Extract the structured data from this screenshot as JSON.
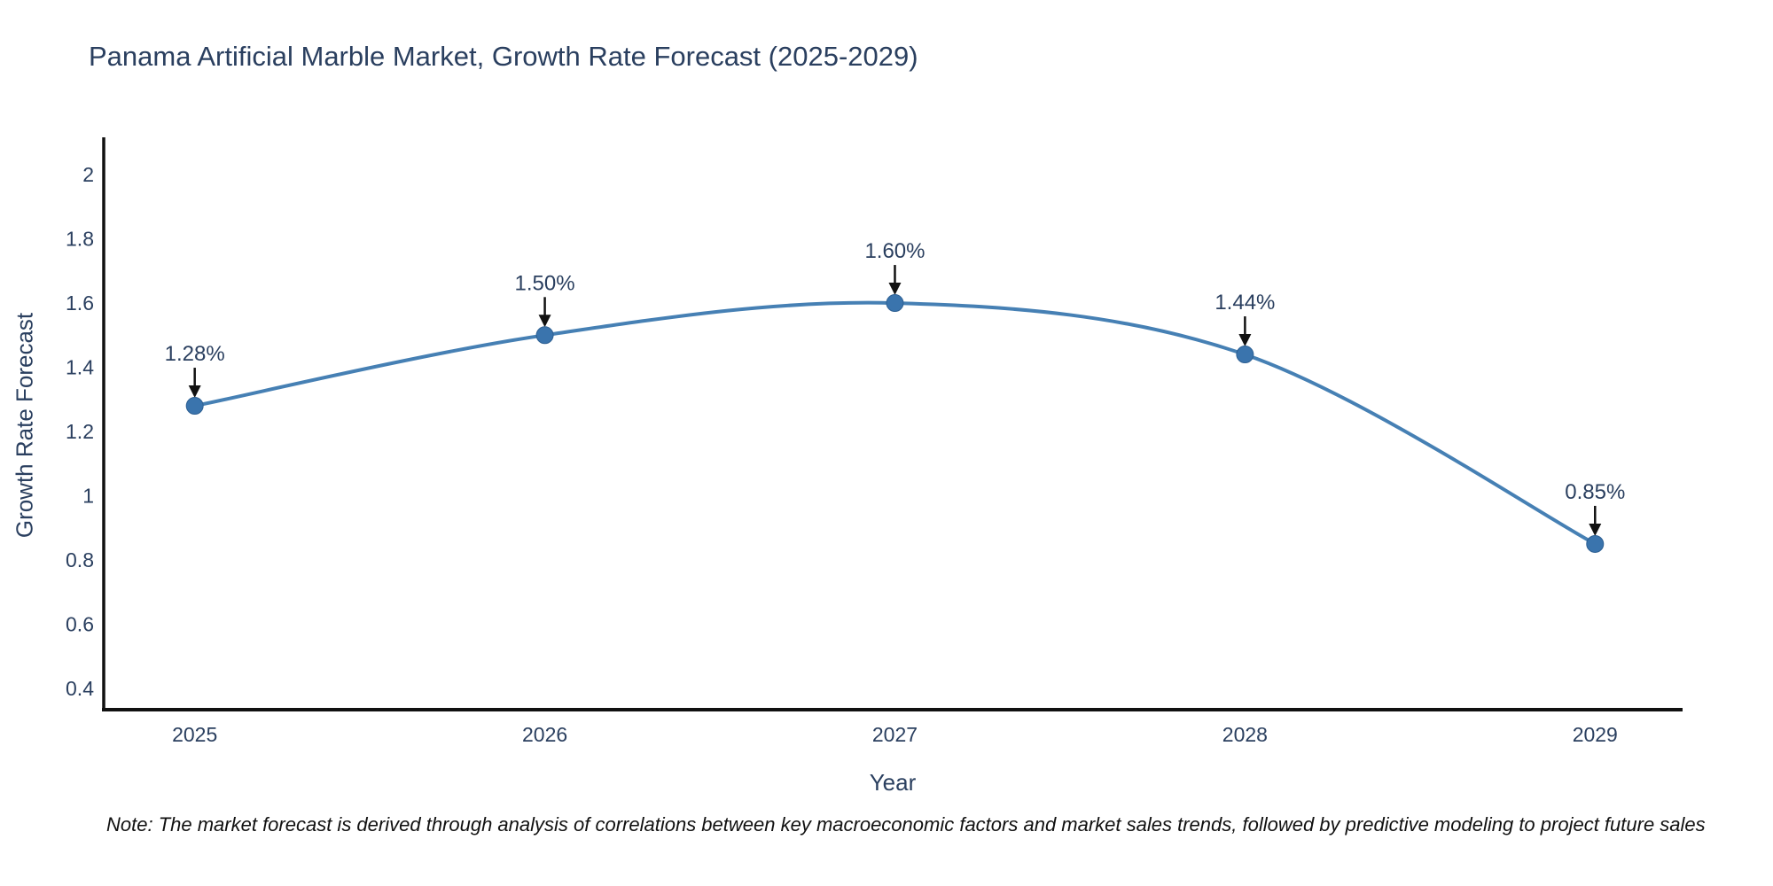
{
  "page": {
    "note": "Note: The market forecast is derived through analysis of correlations between key macroeconomic factors and market sales trends, followed by predictive modeling to project future sales"
  },
  "chart_data": {
    "type": "line",
    "title": "Panama Artificial Marble Market, Growth Rate Forecast (2025-2029)",
    "xlabel": "Year",
    "ylabel": "Growth Rate Forecast",
    "x": [
      2025,
      2026,
      2027,
      2028,
      2029
    ],
    "series": [
      {
        "name": "Growth Rate Forecast",
        "values": [
          1.28,
          1.5,
          1.6,
          1.44,
          0.85
        ],
        "point_labels": [
          "1.28%",
          "1.50%",
          "1.60%",
          "1.44%",
          "0.85%"
        ]
      }
    ],
    "line_shape": "spline",
    "markers": true,
    "grid": false,
    "legend": false,
    "xlim": [
      2024.74,
      2029.25
    ],
    "ylim": [
      0.334,
      2.116
    ],
    "yticks": {
      "values": [
        2,
        1.8,
        1.6,
        1.4,
        1.2,
        1,
        0.8,
        0.6,
        0.4
      ],
      "labels": [
        "2",
        "1.8",
        "1.6",
        "1.4",
        "1.2",
        "1",
        "0.8",
        "0.6",
        "0.4"
      ]
    },
    "xticks": {
      "values": [
        2025,
        2026,
        2027,
        2028,
        2029
      ],
      "labels": [
        "2025",
        "2026",
        "2027",
        "2028",
        "2029"
      ]
    },
    "colors": {
      "line": "#4680b4",
      "marker": "#3a74ad",
      "marker_border": "#2d5f92",
      "axis": "#111111",
      "tick_text": "#2a3f5f",
      "title_text": "#2a3f5f",
      "annotation_text": "#2a3f5f",
      "arrow": "#111111"
    }
  }
}
